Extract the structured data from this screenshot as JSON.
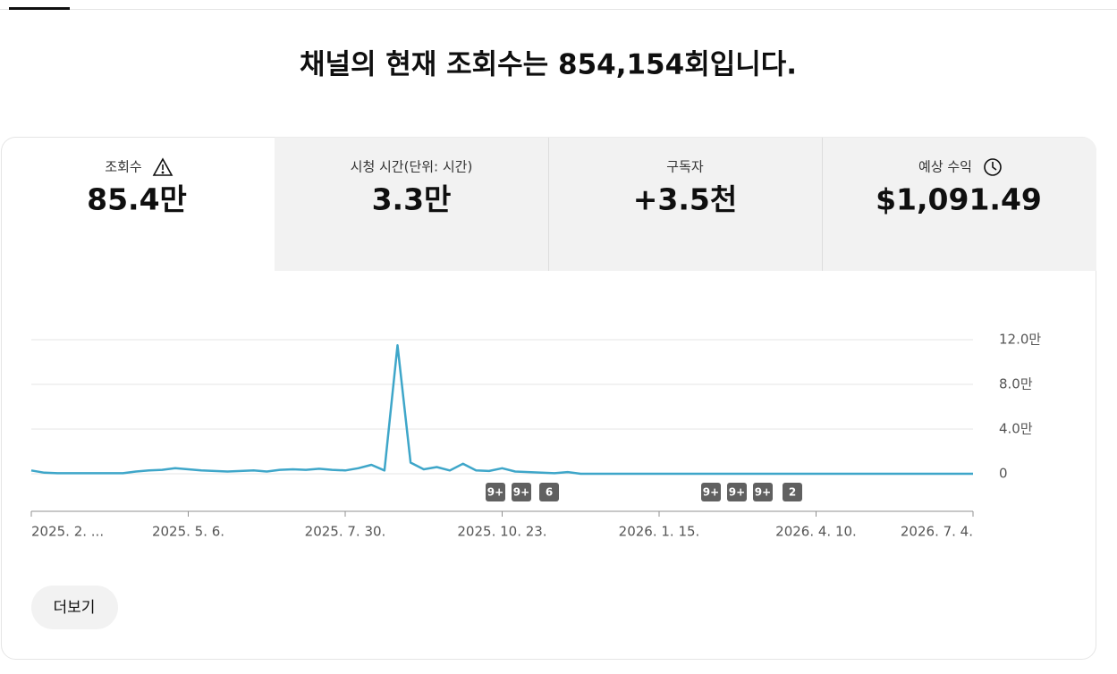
{
  "header": {
    "title": "채널의 현재 조회수는 854,154회입니다."
  },
  "metrics": [
    {
      "label": "조회수",
      "value": "85.4만"
    },
    {
      "label": "시청 시간(단위: 시간)",
      "value": "3.3만"
    },
    {
      "label": "구독자",
      "value": "+3.5천"
    },
    {
      "label": "예상 수익",
      "value": "$1,091.49"
    }
  ],
  "chart_data": {
    "type": "line",
    "categories": [
      "2025. 2. ...",
      null,
      null,
      null,
      null,
      null,
      null,
      null,
      null,
      null,
      null,
      null,
      "2025. 5. 6.",
      null,
      null,
      null,
      null,
      null,
      null,
      null,
      null,
      null,
      null,
      null,
      "2025. 7. 30.",
      null,
      null,
      null,
      null,
      null,
      null,
      null,
      null,
      null,
      null,
      null,
      "2025. 10. 23.",
      null,
      null,
      null,
      null,
      null,
      null,
      null,
      null,
      null,
      null,
      null,
      "2026. 1. 15.",
      null,
      null,
      null,
      null,
      null,
      null,
      null,
      null,
      null,
      null,
      null,
      "2026. 4. 10.",
      null,
      null,
      null,
      null,
      null,
      null,
      null,
      null,
      null,
      null,
      null,
      "2026. 7. 4."
    ],
    "values": [
      3000,
      1000,
      500,
      500,
      500,
      500,
      500,
      500,
      2000,
      3000,
      3500,
      5000,
      4000,
      3000,
      2500,
      2000,
      2500,
      3000,
      2000,
      3500,
      4000,
      3500,
      4500,
      3500,
      3000,
      5000,
      8000,
      3000,
      115000,
      10000,
      4000,
      6000,
      3000,
      9000,
      3000,
      2500,
      5000,
      2000,
      1500,
      1000,
      500,
      1500,
      0,
      0,
      0,
      0,
      0,
      0,
      0,
      0,
      0,
      0,
      0,
      0,
      0,
      0,
      0,
      0,
      0,
      0,
      0,
      0,
      0,
      0,
      0,
      0,
      0,
      0,
      0,
      0,
      0,
      0,
      0
    ],
    "color": "#3ea6c9",
    "ylim": [
      0,
      120000
    ],
    "yticks": [
      0,
      {
        "value": 40000,
        "label": "4.0만"
      },
      {
        "value": 80000,
        "label": "8.0만"
      },
      {
        "value": 120000,
        "label": "12.0만"
      }
    ],
    "grid": true,
    "annotations": [
      "9+",
      "9+",
      "6",
      "9+",
      "9+",
      "9+",
      "2"
    ]
  },
  "button": {
    "label": "더보기"
  }
}
